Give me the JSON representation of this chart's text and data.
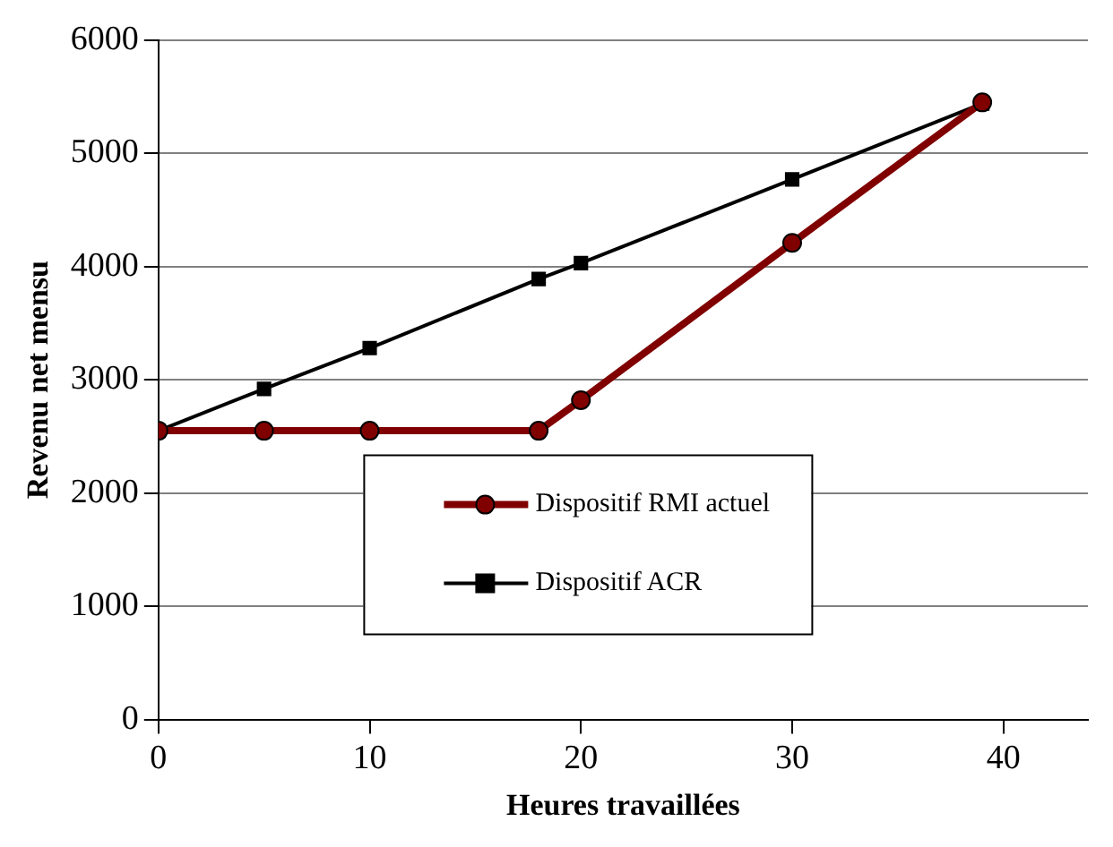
{
  "chart_data": {
    "type": "line",
    "xlabel": "Heures travaillées",
    "ylabel": "Revenu net mensu",
    "xlim": [
      0,
      44
    ],
    "xticks": [
      0,
      10,
      20,
      30,
      40
    ],
    "ylim": [
      0,
      6000
    ],
    "yticks": [
      0,
      1000,
      2000,
      3000,
      4000,
      5000,
      6000
    ],
    "grid": "y",
    "legend": "bottom",
    "line_style": "solid",
    "series": [
      {
        "name": "Dispositif RMI actuel",
        "color": "#800000",
        "marker": "circle",
        "x": [
          0,
          5,
          10,
          18,
          20,
          30,
          39
        ],
        "values": [
          2550,
          2550,
          2550,
          2550,
          2820,
          4210,
          5450
        ]
      },
      {
        "name": "Dispositif ACR",
        "color": "#000000",
        "marker": "square",
        "x": [
          0,
          5,
          10,
          18,
          20,
          30,
          39
        ],
        "values": [
          2550,
          2920,
          3280,
          3890,
          4030,
          4770,
          5440
        ]
      }
    ]
  }
}
